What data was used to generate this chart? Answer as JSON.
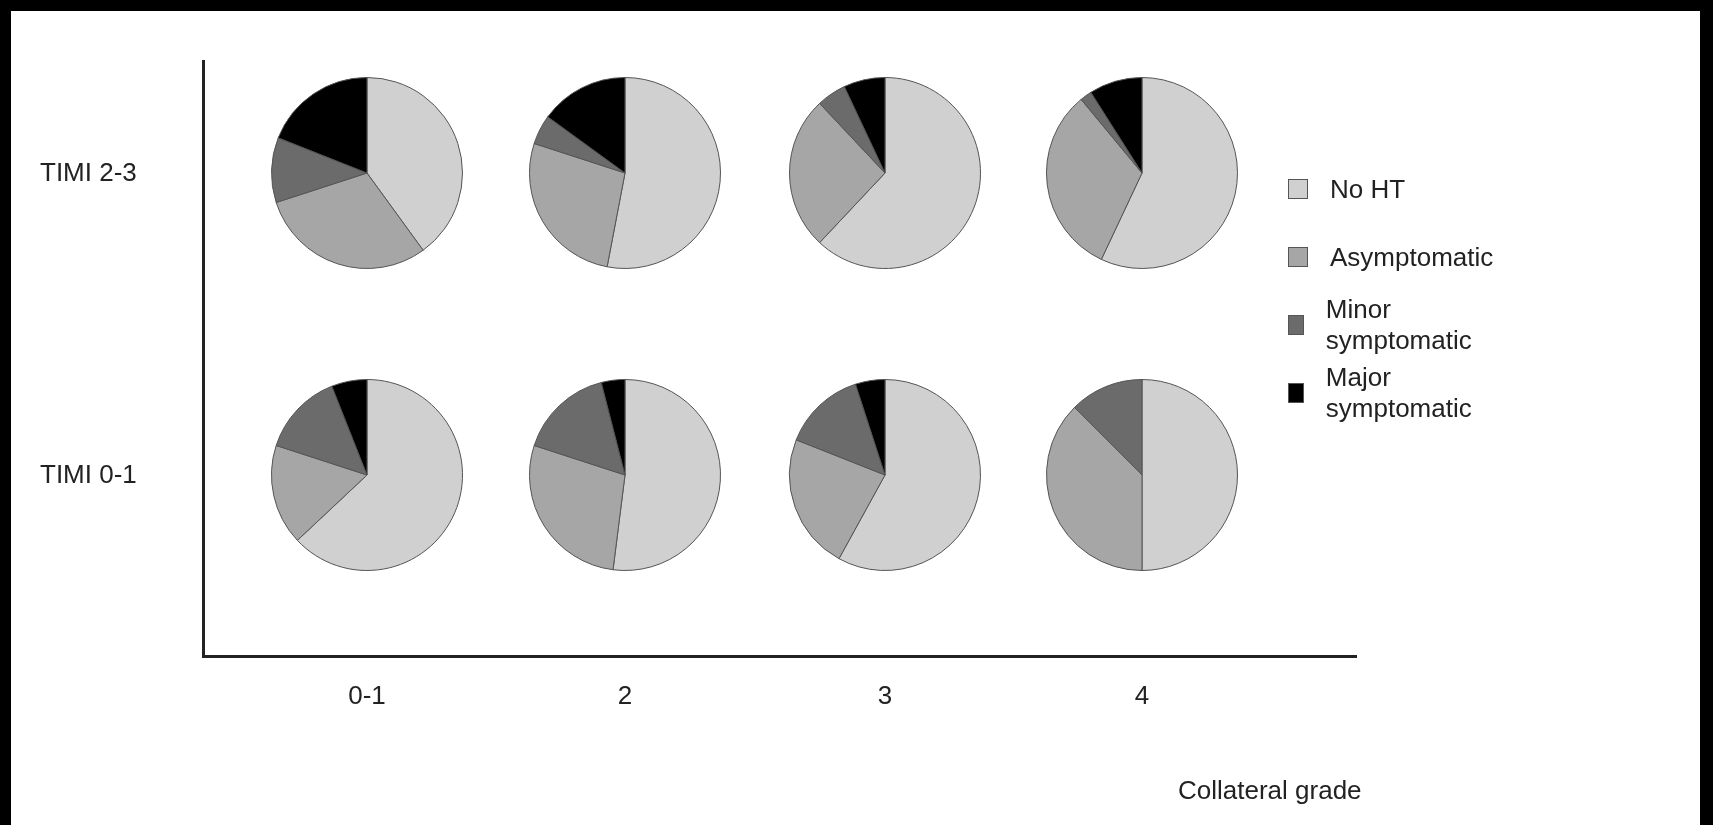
{
  "chart_data": [
    {
      "type": "pie",
      "categories": [
        "No HT",
        "Asymptomatic",
        "Minor symptomatic",
        "Major symptomatic"
      ],
      "values": [
        40,
        30,
        11,
        19
      ],
      "colors": [
        "#d0d0d0",
        "#a6a6a6",
        "#6b6b6b",
        "#000000"
      ],
      "legend": "right"
    },
    {
      "type": "pie",
      "values": [
        53,
        27,
        5,
        15
      ],
      "colors": [
        "#d0d0d0",
        "#a6a6a6",
        "#6b6b6b",
        "#000000"
      ]
    },
    {
      "type": "pie",
      "values": [
        62,
        26,
        5,
        7
      ],
      "colors": [
        "#d0d0d0",
        "#a6a6a6",
        "#6b6b6b",
        "#000000"
      ]
    },
    {
      "type": "pie",
      "values": [
        57,
        32,
        2,
        9
      ],
      "colors": [
        "#d0d0d0",
        "#a6a6a6",
        "#6b6b6b",
        "#000000"
      ]
    },
    {
      "type": "pie",
      "values": [
        63,
        17,
        14,
        6
      ],
      "colors": [
        "#d0d0d0",
        "#a6a6a6",
        "#6b6b6b",
        "#000000"
      ]
    },
    {
      "type": "pie",
      "values": [
        52,
        28,
        16,
        4
      ],
      "colors": [
        "#d0d0d0",
        "#a6a6a6",
        "#6b6b6b",
        "#000000"
      ]
    },
    {
      "type": "pie",
      "values": [
        58,
        23,
        14,
        5
      ],
      "colors": [
        "#d0d0d0",
        "#a6a6a6",
        "#6b6b6b",
        "#000000"
      ]
    },
    {
      "type": "pie",
      "values": [
        50,
        37.5,
        12.5,
        0
      ],
      "colors": [
        "#d0d0d0",
        "#a6a6a6",
        "#6b6b6b",
        "#000000"
      ]
    },
    {
      "type": "other",
      "xlabel": "Collateral grade",
      "annotations": [
        "TIMI 2-3",
        "TIMI 0-1",
        "0-1",
        "2",
        "3",
        "4"
      ]
    }
  ]
}
